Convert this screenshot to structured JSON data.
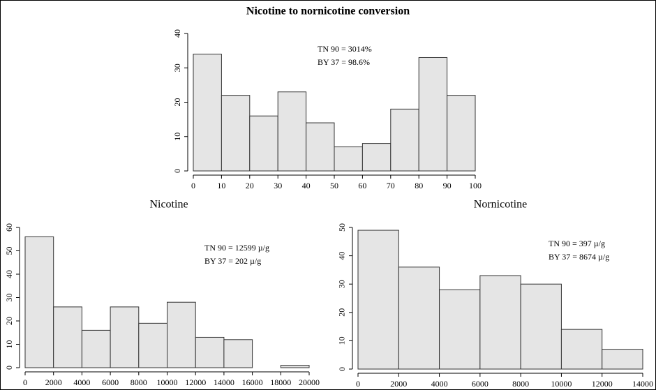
{
  "chart_data": [
    {
      "type": "histogram",
      "title": "Nicotine to nornicotine conversion",
      "bins": [
        0,
        10,
        20,
        30,
        40,
        50,
        60,
        70,
        80,
        90,
        100
      ],
      "values": [
        34,
        22,
        16,
        23,
        14,
        7,
        8,
        18,
        33,
        22
      ],
      "color": "#e5e5e5",
      "xlim": [
        0,
        100
      ],
      "xticks": [
        0,
        10,
        20,
        30,
        40,
        50,
        60,
        70,
        80,
        90,
        100
      ],
      "ylim": [
        0,
        40
      ],
      "yticks": [
        0,
        10,
        20,
        30,
        40
      ],
      "annotations": [
        "TN 90 = 3014%",
        "BY 37 = 98.6%"
      ]
    },
    {
      "type": "histogram",
      "title": "Nicotine",
      "bins": [
        0,
        2000,
        4000,
        6000,
        8000,
        10000,
        12000,
        14000,
        16000,
        18000,
        20000
      ],
      "values": [
        56,
        26,
        16,
        26,
        19,
        28,
        13,
        12,
        0,
        1
      ],
      "color": "#e5e5e5",
      "xlim": [
        0,
        20000
      ],
      "xticks": [
        0,
        2000,
        4000,
        6000,
        8000,
        10000,
        12000,
        14000,
        16000,
        18000,
        20000
      ],
      "ylim": [
        0,
        60
      ],
      "yticks": [
        0,
        10,
        20,
        30,
        40,
        50,
        60
      ],
      "annotations": [
        "TN 90 = 12599 µ/g",
        "BY 37 = 202 µ/g"
      ]
    },
    {
      "type": "histogram",
      "title": "Nornicotine",
      "bins": [
        0,
        2000,
        4000,
        6000,
        8000,
        10000,
        12000,
        14000
      ],
      "values": [
        49,
        36,
        28,
        33,
        30,
        14,
        7
      ],
      "color": "#e5e5e5",
      "xlim": [
        0,
        14000
      ],
      "xticks": [
        0,
        2000,
        4000,
        6000,
        8000,
        10000,
        12000,
        14000
      ],
      "ylim": [
        0,
        50
      ],
      "yticks": [
        0,
        10,
        20,
        30,
        40,
        50
      ],
      "annotations": [
        "TN 90 = 397 µ/g",
        "BY 37 = 8674 µ/g"
      ]
    }
  ]
}
